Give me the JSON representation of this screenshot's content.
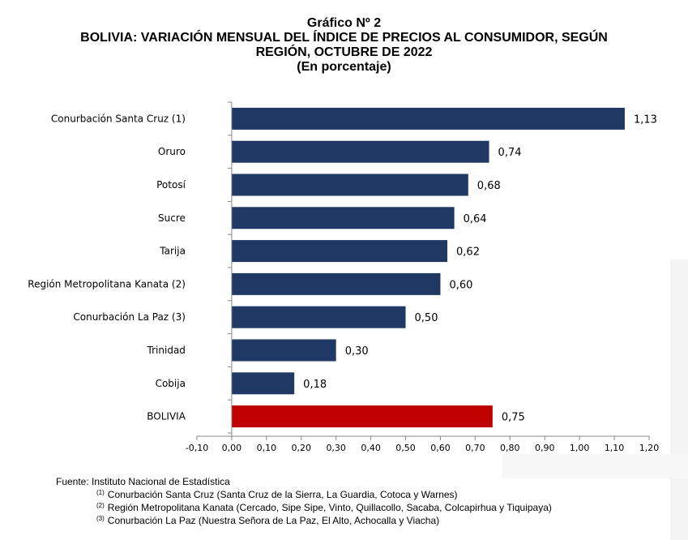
{
  "header": {
    "figure_number": "Gráfico Nº 2",
    "title_line1": "BOLIVIA: VARIACIÓN MENSUAL DEL ÍNDICE DE PRECIOS AL CONSUMIDOR, SEGÚN",
    "title_line2": "REGIÓN, OCTUBRE DE 2022",
    "subtitle": "(En porcentaje)"
  },
  "chart_data": {
    "type": "bar",
    "orientation": "horizontal",
    "categories": [
      "Conurbación Santa Cruz (1)",
      "Oruro",
      "Potosí",
      "Sucre",
      "Tarija",
      "Región Metropolitana Kanata (2)",
      "Conurbación La Paz (3)",
      "Trinidad",
      "Cobija",
      "BOLIVIA"
    ],
    "values": [
      1.13,
      0.74,
      0.68,
      0.64,
      0.62,
      0.6,
      0.5,
      0.3,
      0.18,
      0.75
    ],
    "value_labels": [
      "1,13",
      "0,74",
      "0,68",
      "0,64",
      "0,62",
      "0,60",
      "0,50",
      "0,30",
      "0,18",
      "0,75"
    ],
    "colors": [
      "#1f3864",
      "#1f3864",
      "#1f3864",
      "#1f3864",
      "#1f3864",
      "#1f3864",
      "#1f3864",
      "#1f3864",
      "#1f3864",
      "#c00000"
    ],
    "xlim": [
      -0.1,
      1.2
    ],
    "ticks": [
      -0.1,
      0.0,
      0.1,
      0.2,
      0.3,
      0.4,
      0.5,
      0.6,
      0.7,
      0.8,
      0.9,
      1.0,
      1.1,
      1.2
    ],
    "tick_labels": [
      "-0,10",
      "0,00",
      "0,10",
      "0,20",
      "0,30",
      "0,40",
      "0,50",
      "0,60",
      "0,70",
      "0,80",
      "0,90",
      "1,00",
      "1,10",
      "1,20"
    ],
    "grid": false
  },
  "footer": {
    "source": "Fuente: Instituto Nacional de Estadística",
    "notes": [
      {
        "mark": "(1)",
        "text": "Conurbación Santa Cruz (Santa Cruz de la Sierra, La Guardia, Cotoca y Warnes)"
      },
      {
        "mark": "(2)",
        "text": "Región Metropolitana Kanata (Cercado, Sipe Sipe, Vinto, Quillacollo, Sacaba, Colcapirhua y Tiquipaya)"
      },
      {
        "mark": "(3)",
        "text": "Conurbación La Paz (Nuestra Señora de La Paz, El Alto, Achocalla y Viacha)"
      }
    ]
  }
}
